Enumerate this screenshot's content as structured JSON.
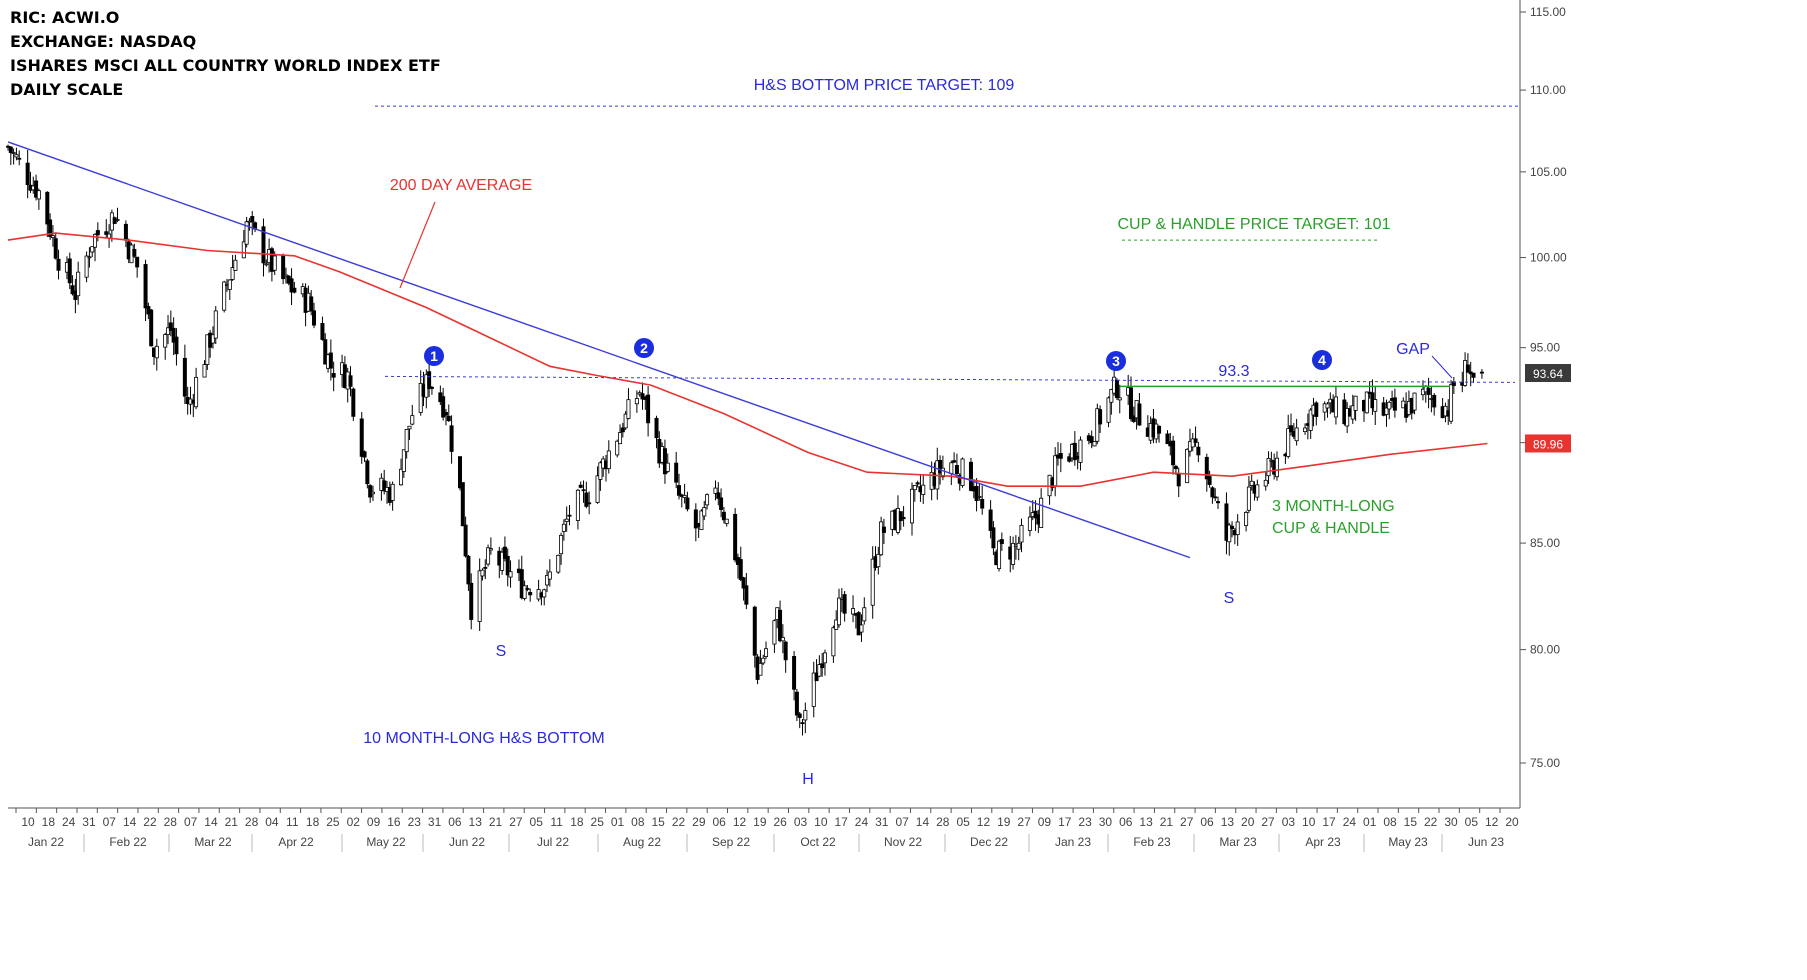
{
  "header": {
    "ric": "RIC: ACWI.O",
    "exchange": "EXCHANGE: NASDAQ",
    "name": "ISHARES MSCI ALL COUNTRY WORLD INDEX ETF",
    "scale": "DAILY SCALE"
  },
  "chart_data": {
    "type": "candlestick",
    "y_scale": "log",
    "ylim": [
      73.6,
      116.2
    ],
    "yticks": [
      "75.00",
      "80.00",
      "85.00",
      "90.00",
      "95.00",
      "100.00",
      "105.00",
      "110.00",
      "115.00"
    ],
    "last_price": "93.64",
    "ma_value": "89.96",
    "x_day_labels": [
      "10",
      "18",
      "24",
      "31",
      "07",
      "14",
      "22",
      "28",
      "07",
      "14",
      "21",
      "28",
      "04",
      "11",
      "18",
      "25",
      "02",
      "09",
      "16",
      "23",
      "31",
      "06",
      "13",
      "21",
      "27",
      "05",
      "11",
      "18",
      "25",
      "01",
      "08",
      "15",
      "22",
      "29",
      "06",
      "12",
      "19",
      "26",
      "03",
      "10",
      "17",
      "24",
      "31",
      "07",
      "14",
      "28",
      "05",
      "12",
      "19",
      "27",
      "09",
      "17",
      "23",
      "30",
      "06",
      "13",
      "21",
      "27",
      "06",
      "13",
      "20",
      "27",
      "03",
      "10",
      "17",
      "24",
      "01",
      "08",
      "15",
      "22",
      "30",
      "05",
      "12",
      "20"
    ],
    "x_month_labels": [
      "Jan 22",
      "Feb 22",
      "Mar 22",
      "Apr 22",
      "May 22",
      "Jun 22",
      "Jul 22",
      "Aug 22",
      "Sep 22",
      "Oct 22",
      "Nov 22",
      "Dec 22",
      "Jan 23",
      "Feb 23",
      "Mar 23",
      "Apr 23",
      "May 23",
      "Jun 23"
    ],
    "price_path": [
      [
        "2022-01-03",
        106.5
      ],
      [
        "2022-01-14",
        103.8
      ],
      [
        "2022-01-21",
        100.0
      ],
      [
        "2022-01-27",
        98.0
      ],
      [
        "2022-02-02",
        101.0
      ],
      [
        "2022-02-10",
        102.5
      ],
      [
        "2022-02-18",
        99.5
      ],
      [
        "2022-02-24",
        95.0
      ],
      [
        "2022-03-02",
        96.0
      ],
      [
        "2022-03-08",
        91.8
      ],
      [
        "2022-03-15",
        95.0
      ],
      [
        "2022-03-21",
        98.0
      ],
      [
        "2022-03-29",
        102.0
      ],
      [
        "2022-04-05",
        100.0
      ],
      [
        "2022-04-12",
        98.5
      ],
      [
        "2022-04-20",
        97.5
      ],
      [
        "2022-04-28",
        94.0
      ],
      [
        "2022-05-04",
        93.5
      ],
      [
        "2022-05-12",
        87.8
      ],
      [
        "2022-05-20",
        87.5
      ],
      [
        "2022-05-27",
        91.5
      ],
      [
        "2022-06-02",
        93.3
      ],
      [
        "2022-06-08",
        91.8
      ],
      [
        "2022-06-13",
        87.5
      ],
      [
        "2022-06-17",
        82.0
      ],
      [
        "2022-06-24",
        84.5
      ],
      [
        "2022-07-05",
        83.0
      ],
      [
        "2022-07-14",
        83.0
      ],
      [
        "2022-07-22",
        86.5
      ],
      [
        "2022-07-29",
        87.5
      ],
      [
        "2022-08-05",
        89.5
      ],
      [
        "2022-08-16",
        92.7
      ],
      [
        "2022-08-22",
        90.0
      ],
      [
        "2022-08-29",
        87.5
      ],
      [
        "2022-09-06",
        85.5
      ],
      [
        "2022-09-12",
        88.0
      ],
      [
        "2022-09-20",
        84.0
      ],
      [
        "2022-09-27",
        79.0
      ],
      [
        "2022-10-04",
        81.5
      ],
      [
        "2022-10-12",
        76.5
      ],
      [
        "2022-10-17",
        78.5
      ],
      [
        "2022-10-25",
        82.0
      ],
      [
        "2022-11-02",
        81.0
      ],
      [
        "2022-11-10",
        85.5
      ],
      [
        "2022-11-18",
        86.5
      ],
      [
        "2022-11-30",
        88.5
      ],
      [
        "2022-12-05",
        89.0
      ],
      [
        "2022-12-13",
        88.0
      ],
      [
        "2022-12-20",
        84.5
      ],
      [
        "2022-12-28",
        84.8
      ],
      [
        "2023-01-05",
        86.5
      ],
      [
        "2023-01-12",
        89.0
      ],
      [
        "2023-01-24",
        90.5
      ],
      [
        "2023-02-02",
        93.0
      ],
      [
        "2023-02-09",
        91.5
      ],
      [
        "2023-02-17",
        90.5
      ],
      [
        "2023-02-24",
        88.5
      ],
      [
        "2023-03-03",
        90.0
      ],
      [
        "2023-03-09",
        87.0
      ],
      [
        "2023-03-13",
        85.2
      ],
      [
        "2023-03-20",
        87.0
      ],
      [
        "2023-03-28",
        88.5
      ],
      [
        "2023-04-06",
        90.5
      ],
      [
        "2023-04-14",
        92.0
      ],
      [
        "2023-04-24",
        91.5
      ],
      [
        "2023-05-01",
        92.0
      ],
      [
        "2023-05-09",
        91.5
      ],
      [
        "2023-05-16",
        91.8
      ],
      [
        "2023-05-23",
        92.5
      ],
      [
        "2023-05-31",
        91.8
      ],
      [
        "2023-06-02",
        93.0
      ],
      [
        "2023-06-05",
        93.2
      ],
      [
        "2023-06-07",
        94.3
      ],
      [
        "2023-06-09",
        93.3
      ],
      [
        "2023-06-12",
        93.64
      ]
    ],
    "moving_average_200": [
      [
        "2022-01-03",
        101.0
      ],
      [
        "2022-01-20",
        101.4
      ],
      [
        "2022-02-15",
        101.0
      ],
      [
        "2022-03-15",
        100.4
      ],
      [
        "2022-04-15",
        100.1
      ],
      [
        "2022-05-01",
        99.2
      ],
      [
        "2022-06-01",
        97.2
      ],
      [
        "2022-06-20",
        95.8
      ],
      [
        "2022-07-15",
        94.0
      ],
      [
        "2022-08-01",
        93.5
      ],
      [
        "2022-08-20",
        93.0
      ],
      [
        "2022-09-15",
        91.5
      ],
      [
        "2022-10-15",
        89.5
      ],
      [
        "2022-11-05",
        88.5
      ],
      [
        "2022-12-05",
        88.3
      ],
      [
        "2022-12-25",
        87.8
      ],
      [
        "2023-01-20",
        87.8
      ],
      [
        "2023-02-15",
        88.5
      ],
      [
        "2023-03-15",
        88.3
      ],
      [
        "2023-04-10",
        88.8
      ],
      [
        "2023-05-10",
        89.4
      ],
      [
        "2023-06-14",
        89.96
      ]
    ],
    "annotations": {
      "hs_target": "H&S BOTTOM PRICE TARGET: 109",
      "ma_label": "200 DAY AVERAGE",
      "cup_target": "CUP & HANDLE PRICE TARGET: 101",
      "neckline_value": "93.3",
      "gap": "GAP",
      "cup_line1": "3 MONTH-LONG",
      "cup_line2": "CUP & HANDLE",
      "hs_label": "10 MONTH-LONG H&S BOTTOM",
      "s_left": "S",
      "s_right": "S",
      "head": "H",
      "points": [
        "1",
        "2",
        "3",
        "4"
      ]
    },
    "levels": {
      "hs_target": 109,
      "cup_target": 101,
      "neckline": 93.3
    },
    "trendline": [
      [
        "2022-01-03",
        106.8
      ],
      [
        "2023-02-28",
        84.3
      ]
    ],
    "colors": {
      "candle": "#000000",
      "ma": "#e8332f",
      "trend": "#3b3bdc",
      "annot_blue": "#2a2adc",
      "annot_green": "#2aa02a",
      "annot_red": "#e8332f",
      "marker_fill": "#1a2ee0",
      "last_price_bg": "#3a3a3a",
      "ma_price_bg": "#e8332f",
      "axis": "#555555"
    }
  }
}
